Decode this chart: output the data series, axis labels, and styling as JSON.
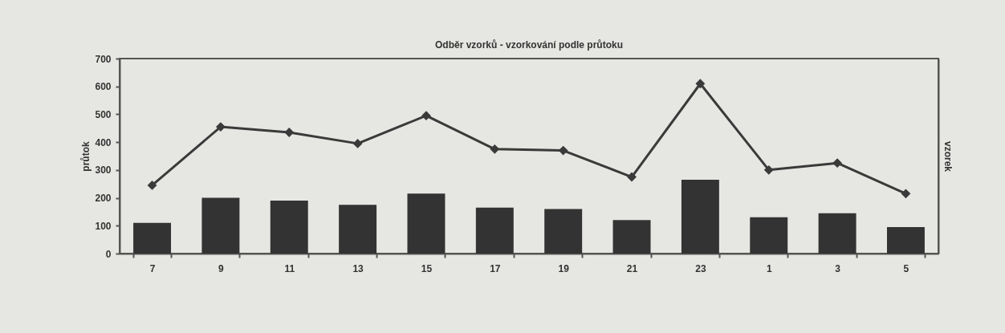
{
  "chart_data": {
    "type": "bar",
    "title": "Odběr vzorků - vzorkování podle průtoku",
    "ylabel": "průtok",
    "y2label": "vzorek",
    "categories": [
      "7",
      "9",
      "11",
      "13",
      "15",
      "17",
      "19",
      "21",
      "23",
      "1",
      "3",
      "5"
    ],
    "series": [
      {
        "color": "#333333",
        "values": [
          110,
          200,
          190,
          175,
          215,
          165,
          160,
          120,
          265,
          130,
          145,
          95
        ]
      },
      {
        "type": "line",
        "color": "#3a3a3a",
        "values": [
          245,
          455,
          435,
          395,
          495,
          375,
          370,
          275,
          610,
          300,
          325,
          215
        ]
      }
    ],
    "ylim": [
      0,
      700
    ],
    "yticks": [
      0,
      100,
      200,
      300,
      400,
      500,
      600,
      700
    ],
    "grid": false,
    "marker": "diamond",
    "line_style": "solid"
  }
}
